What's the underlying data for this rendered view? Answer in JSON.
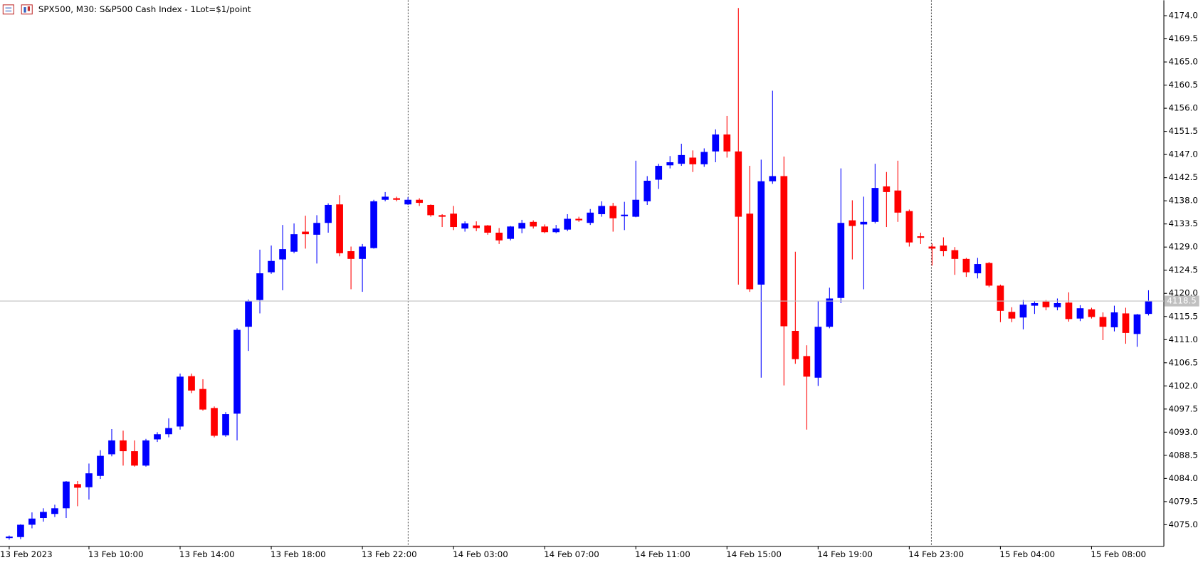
{
  "chart_data": {
    "type": "candlestick",
    "title": "SPX500, M30:  S&P500 Cash Index - 1Lot=$1/point",
    "categories": [
      "13 Feb 2023",
      null,
      null,
      null,
      null,
      null,
      null,
      "13 Feb 10:00",
      null,
      null,
      null,
      null,
      null,
      null,
      null,
      "13 Feb 14:00",
      null,
      null,
      null,
      null,
      null,
      null,
      null,
      "13 Feb 18:00",
      null,
      null,
      null,
      null,
      null,
      null,
      null,
      "13 Feb 22:00",
      null,
      null,
      null,
      null,
      null,
      null,
      null,
      "14 Feb 03:00",
      null,
      null,
      null,
      null,
      null,
      null,
      null,
      "14 Feb 07:00",
      null,
      null,
      null,
      null,
      null,
      null,
      null,
      "14 Feb 11:00",
      null,
      null,
      null,
      null,
      null,
      null,
      null,
      "14 Feb 15:00",
      null,
      null,
      null,
      null,
      null,
      null,
      null,
      "14 Feb 19:00",
      null,
      null,
      null,
      null,
      null,
      null,
      null,
      "14 Feb 23:00",
      null,
      null,
      null,
      null,
      null,
      null,
      null,
      "15 Feb 04:00",
      null,
      null,
      null,
      null,
      null,
      null,
      null,
      "15 Feb 08:00",
      null,
      null,
      null,
      null,
      null
    ],
    "open": [
      4072.4,
      4072.6,
      4075.0,
      4076.3,
      4077.1,
      4078.2,
      4082.9,
      4082.3,
      4084.5,
      4088.7,
      4091.4,
      4089.3,
      4086.5,
      4091.6,
      4092.6,
      4094.1,
      4103.9,
      4101.4,
      4097.7,
      4092.4,
      4096.6,
      4113.5,
      4118.7,
      4124.1,
      4126.6,
      4128.1,
      4132.0,
      4131.4,
      4133.7,
      4137.3,
      4128.2,
      4126.7,
      4128.8,
      4138.2,
      4138.5,
      4137.3,
      4138.2,
      4137.2,
      4135.2,
      4135.5,
      4132.6,
      4133.2,
      4133.2,
      4131.8,
      4130.6,
      4132.6,
      4133.9,
      4133.0,
      4131.9,
      4132.4,
      4134.5,
      4133.7,
      4135.4,
      4137.0,
      4135.0,
      4134.9,
      4137.9,
      4142.1,
      4144.9,
      4145.2,
      4146.4,
      4145.1,
      4147.6,
      4150.9,
      4147.6,
      4135.5,
      4121.7,
      4141.8,
      4142.8,
      4112.7,
      4107.8,
      4103.6,
      4113.5,
      4119.1,
      4134.2,
      4133.4,
      4133.9,
      4140.8,
      4140.0,
      4136.0,
      4131.1,
      4129.1,
      4129.3,
      4128.4,
      4126.7,
      4123.9,
      4125.9,
      4121.5,
      4116.4,
      4115.3,
      4117.6,
      4118.4,
      4117.3,
      4118.2,
      4115.1,
      4116.9,
      4115.4,
      4113.4,
      4116.1,
      4112.1,
      4116.0
    ],
    "high": [
      4072.9,
      4075.1,
      4077.4,
      4078.2,
      4078.9,
      4083.5,
      4083.5,
      4086.9,
      4089.5,
      4093.6,
      4093.3,
      4091.4,
      4091.7,
      4093.0,
      4095.7,
      4104.4,
      4104.4,
      4103.3,
      4098.0,
      4096.9,
      4113.2,
      4118.8,
      4128.5,
      4129.3,
      4133.3,
      4133.6,
      4135.1,
      4135.2,
      4137.5,
      4139.1,
      4129.1,
      4129.6,
      4138.2,
      4139.7,
      4138.8,
      4138.7,
      4138.5,
      4137.3,
      4135.4,
      4137.0,
      4134.0,
      4134.0,
      4133.3,
      4132.7,
      4133.1,
      4134.3,
      4134.2,
      4133.4,
      4133.3,
      4135.4,
      4134.9,
      4136.4,
      4137.9,
      4137.6,
      4137.8,
      4145.8,
      4142.8,
      4145.2,
      4146.7,
      4149.1,
      4147.8,
      4148.2,
      4151.9,
      4154.5,
      4175.5,
      4144.8,
      4146.0,
      4159.4,
      4146.6,
      4128.1,
      4109.9,
      4118.5,
      4121.1,
      4144.3,
      4138.1,
      4138.8,
      4145.2,
      4143.6,
      4145.8,
      4136.3,
      4131.8,
      4129.7,
      4130.9,
      4129.0,
      4126.9,
      4126.9,
      4126.1,
      4121.7,
      4117.3,
      4118.7,
      4118.5,
      4118.7,
      4119.0,
      4120.2,
      4117.7,
      4117.2,
      4116.3,
      4117.6,
      4117.2,
      4116.0,
      4120.6
    ],
    "low": [
      4072.1,
      4072.2,
      4074.3,
      4075.6,
      4076.5,
      4076.3,
      4078.6,
      4079.9,
      4083.9,
      4088.3,
      4086.5,
      4086.3,
      4086.3,
      4091.1,
      4092.0,
      4093.5,
      4100.6,
      4097.2,
      4092.0,
      4092.1,
      4091.4,
      4108.8,
      4116.1,
      4123.8,
      4120.6,
      4127.8,
      4128.7,
      4125.8,
      4131.8,
      4127.2,
      4120.8,
      4120.3,
      4128.7,
      4137.9,
      4137.9,
      4137.2,
      4137.0,
      4134.9,
      4132.9,
      4132.3,
      4132.0,
      4132.1,
      4131.4,
      4129.6,
      4130.3,
      4131.7,
      4132.6,
      4131.7,
      4131.7,
      4132.1,
      4133.9,
      4133.3,
      4134.9,
      4132.0,
      4132.3,
      4134.8,
      4137.2,
      4140.3,
      4144.3,
      4144.8,
      4143.6,
      4144.6,
      4145.5,
      4146.4,
      4121.7,
      4120.3,
      4103.6,
      4141.3,
      4102.1,
      4106.3,
      4093.5,
      4102.0,
      4113.2,
      4118.1,
      4126.6,
      4120.8,
      4133.6,
      4132.9,
      4133.9,
      4129.1,
      4129.6,
      4125.4,
      4127.2,
      4123.6,
      4123.2,
      4122.9,
      4121.2,
      4114.4,
      4114.4,
      4113.0,
      4116.0,
      4116.7,
      4116.7,
      4114.5,
      4114.6,
      4115.1,
      4110.9,
      4112.6,
      4110.2,
      4109.6,
      4115.7
    ],
    "close": [
      4072.7,
      4075.0,
      4076.2,
      4077.5,
      4078.2,
      4083.4,
      4082.2,
      4085.0,
      4088.4,
      4091.4,
      4089.3,
      4086.5,
      4091.4,
      4092.6,
      4093.8,
      4103.8,
      4101.1,
      4097.4,
      4092.3,
      4096.5,
      4112.9,
      4118.5,
      4123.9,
      4126.3,
      4128.6,
      4131.5,
      4131.5,
      4133.7,
      4137.2,
      4127.8,
      4126.7,
      4129.1,
      4137.9,
      4138.8,
      4138.2,
      4138.2,
      4137.6,
      4135.2,
      4134.9,
      4132.9,
      4133.6,
      4132.7,
      4131.8,
      4130.3,
      4133.0,
      4133.7,
      4133.0,
      4131.9,
      4132.6,
      4134.5,
      4134.2,
      4135.7,
      4137.0,
      4134.6,
      4135.3,
      4138.2,
      4141.9,
      4144.8,
      4145.5,
      4146.9,
      4145.1,
      4147.5,
      4150.9,
      4147.6,
      4134.9,
      4120.8,
      4141.8,
      4142.8,
      4113.6,
      4107.2,
      4103.8,
      4113.5,
      4119.0,
      4133.7,
      4133.1,
      4133.9,
      4140.5,
      4139.7,
      4135.7,
      4129.9,
      4130.8,
      4128.7,
      4128.2,
      4126.7,
      4124.1,
      4125.7,
      4121.5,
      4116.6,
      4115.1,
      4117.8,
      4118.1,
      4117.3,
      4118.1,
      4115.0,
      4117.1,
      4115.4,
      4113.5,
      4116.3,
      4112.3,
      4115.9,
      4118.5
    ],
    "up_color": "#0000ff",
    "down_color": "#ff0000",
    "current_price": 4118.5,
    "ylim": [
      4070.8,
      4177.0
    ],
    "yticks": [
      {
        "value": 4174.0,
        "label": "4174.0"
      },
      4169.5,
      {
        "value": 4165.0,
        "label": "4165.0"
      },
      4160.5,
      {
        "value": 4156.0,
        "label": "4156.0"
      },
      4151.5,
      {
        "value": 4147.0,
        "label": "4147.0"
      },
      4142.5,
      {
        "value": 4138.0,
        "label": "4138.0"
      },
      4133.5,
      {
        "value": 4129.0,
        "label": "4129.0"
      },
      4124.5,
      {
        "value": 4120.0,
        "label": "4120.0"
      },
      4115.5,
      {
        "value": 4111.0,
        "label": "4111.0"
      },
      4106.5,
      {
        "value": 4102.0,
        "label": "4102.0"
      },
      4097.5,
      {
        "value": 4093.0,
        "label": "4093.0"
      },
      4088.5,
      {
        "value": 4084.0,
        "label": "4084.0"
      },
      4079.5,
      {
        "value": 4075.0,
        "label": "4075.0"
      }
    ]
  }
}
